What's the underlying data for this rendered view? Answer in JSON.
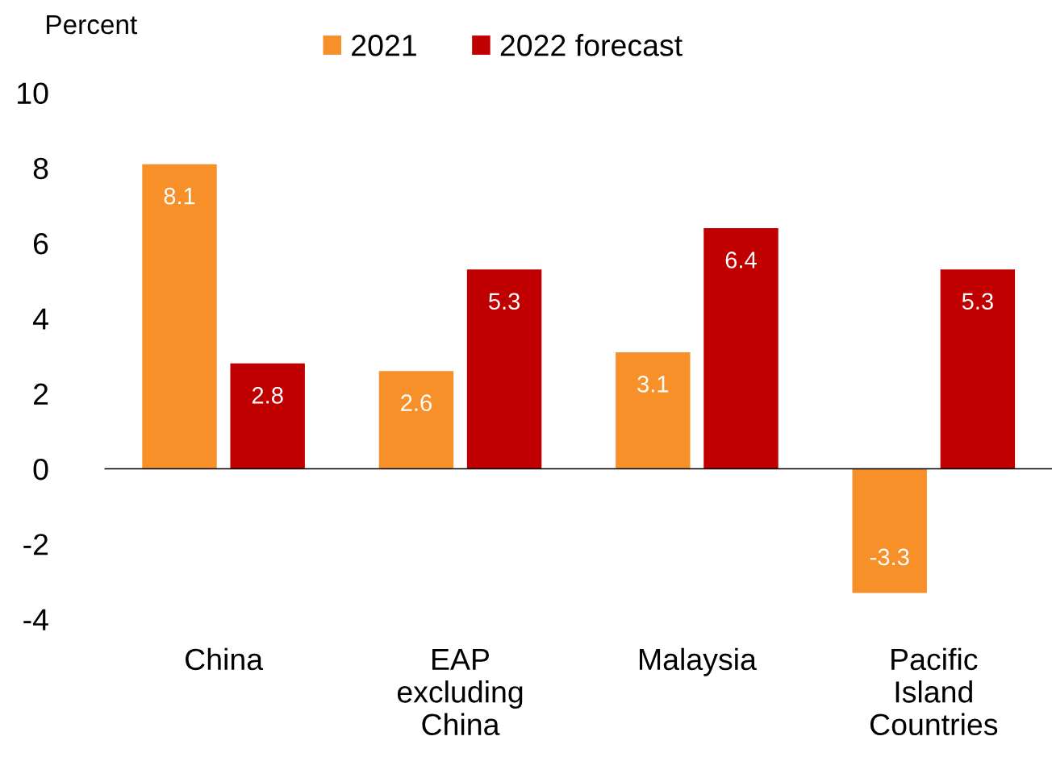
{
  "chart_data": {
    "type": "bar",
    "ylabel": "Percent",
    "categories": [
      "China",
      "EAP\nexcluding\nChina",
      "Malaysia",
      "Pacific\nIsland\nCountries"
    ],
    "series": [
      {
        "name": "2021",
        "color": "#f79029",
        "values": [
          8.1,
          2.6,
          3.1,
          -3.3
        ]
      },
      {
        "name": "2022 forecast",
        "color": "#c00000",
        "values": [
          2.8,
          5.3,
          6.4,
          5.3
        ]
      }
    ],
    "ylim": [
      -4,
      10
    ],
    "yticks": [
      -4,
      -2,
      0,
      2,
      4,
      6,
      8,
      10
    ],
    "data_labels": true,
    "legend": "top"
  }
}
